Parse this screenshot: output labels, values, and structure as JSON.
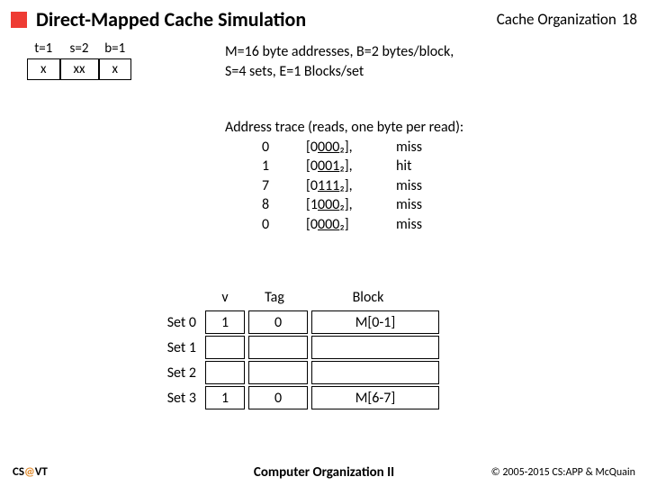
{
  "header": {
    "title": "Direct-Mapped Cache Simulation",
    "subtitle": "Cache Organization",
    "page": "18"
  },
  "addr_format": [
    {
      "label": "t=1",
      "bits": "x"
    },
    {
      "label": "s=2",
      "bits": "xx"
    },
    {
      "label": "b=1",
      "bits": "x"
    }
  ],
  "params": {
    "line1": "M=16 byte addresses, B=2 bytes/block,",
    "line2": "S=4 sets, E=1 Blocks/set"
  },
  "trace": {
    "heading": "Address trace (reads, one byte per read):",
    "rows": [
      {
        "addr": "0",
        "bin_pre": "[0",
        "bin_u": "000",
        "bin_post": "₂],",
        "result": "miss"
      },
      {
        "addr": "1",
        "bin_pre": "[0",
        "bin_u": "001",
        "bin_post": "₂],",
        "result": " hit"
      },
      {
        "addr": "7",
        "bin_pre": "[0",
        "bin_u": "111",
        "bin_post": "₂],",
        "result": "miss"
      },
      {
        "addr": "8",
        "bin_pre": "[1",
        "bin_u": "000",
        "bin_post": "₂],",
        "result": "miss"
      },
      {
        "addr": "0",
        "bin_pre": "[0",
        "bin_u": "000",
        "bin_post": "₂]",
        "result": "miss"
      }
    ]
  },
  "cache": {
    "headers": {
      "v": "v",
      "tag": "Tag",
      "block": "Block"
    },
    "rows": [
      {
        "label": "Set 0",
        "v": "1",
        "tag": "0",
        "block": "M[0-1]"
      },
      {
        "label": "Set 1",
        "v": "",
        "tag": "",
        "block": ""
      },
      {
        "label": "Set 2",
        "v": "",
        "tag": "",
        "block": ""
      },
      {
        "label": "Set 3",
        "v": "1",
        "tag": "0",
        "block": "M[6-7]"
      }
    ]
  },
  "footer": {
    "left_pre": "CS",
    "left_at": "@",
    "left_post": "VT",
    "center": "Computer Organization II",
    "right": "© 2005-2015 CS:APP & McQuain"
  },
  "colors": {
    "accent": "#ee3b33",
    "at": "#e08a2c",
    "text": "#000000",
    "bg": "#ffffff"
  }
}
